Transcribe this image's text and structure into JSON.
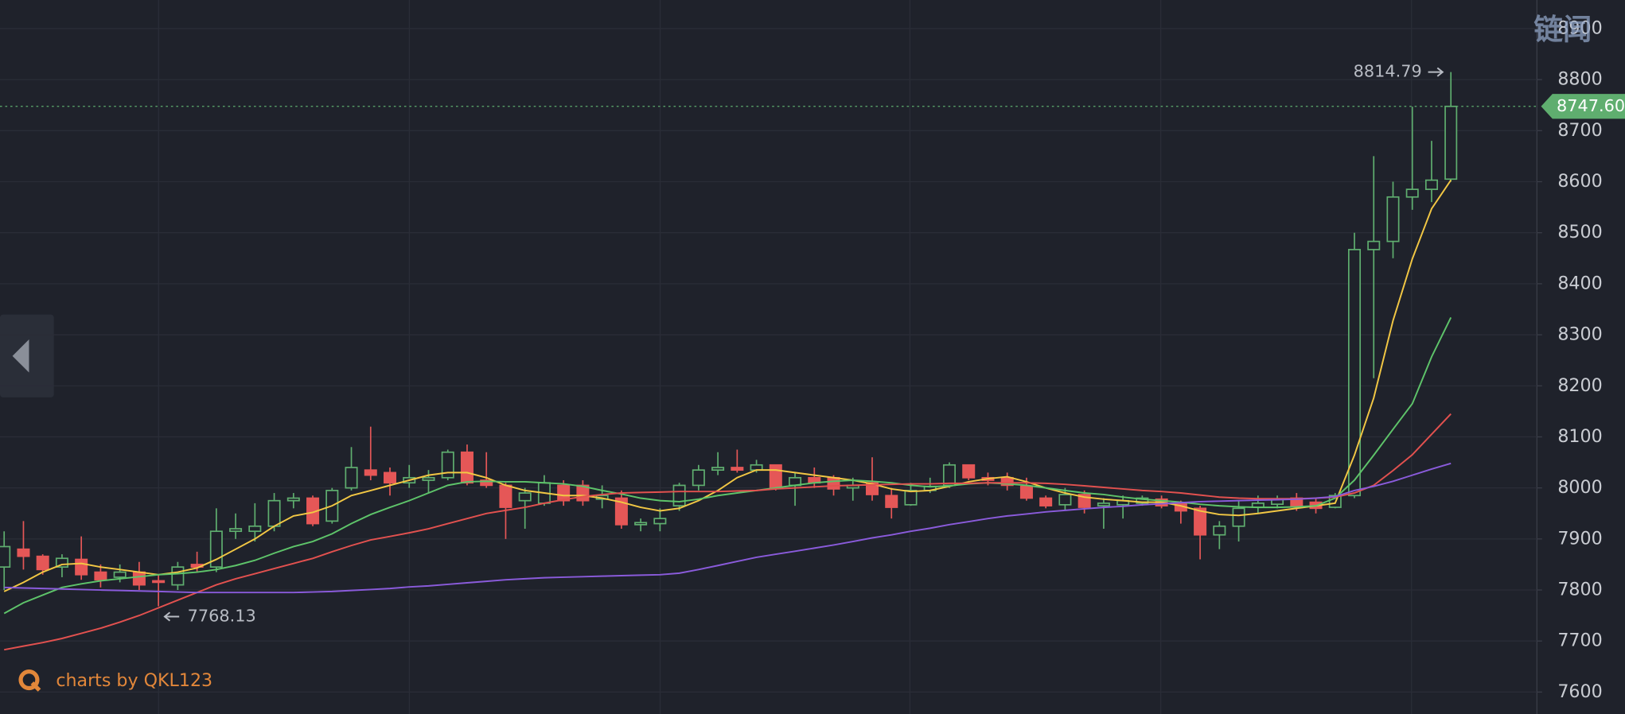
{
  "chart_data": {
    "type": "candlestick",
    "watermark": "链闻",
    "footer": "charts by QKL123",
    "ylim": [
      7557,
      8956
    ],
    "yticks": [
      7600,
      7700,
      7800,
      7900,
      8000,
      8100,
      8200,
      8300,
      8400,
      8500,
      8600,
      8700,
      8800,
      8900
    ],
    "grid": true,
    "up_color": "#5fae6f",
    "down_color": "#e55757",
    "last_price": {
      "value": 8747.6,
      "label": "8747.60"
    },
    "high_annotation": "8814.79",
    "low_annotation": "7768.13",
    "open": [
      7845,
      7880,
      7866,
      7845,
      7860,
      7835,
      7825,
      7835,
      7818,
      7810,
      7850,
      7845,
      7915,
      7915,
      7925,
      7975,
      7980,
      7935,
      8000,
      8035,
      8030,
      8010,
      8015,
      8020,
      8070,
      8015,
      8005,
      7975,
      7970,
      8005,
      8005,
      7978,
      7980,
      7928,
      7930,
      7965,
      8005,
      8035,
      8040,
      8035,
      8045,
      8005,
      8020,
      8020,
      8000,
      8010,
      7985,
      7967,
      7995,
      8005,
      8045,
      8020,
      8020,
      8003,
      7980,
      7967,
      7987,
      7965,
      7967,
      7970,
      7978,
      7970,
      7960,
      7908,
      7925,
      7962,
      7968,
      7980,
      7972,
      7962,
      7985,
      8467,
      8483,
      8570,
      8585,
      8605
    ],
    "high": [
      7915,
      7935,
      7870,
      7870,
      7905,
      7850,
      7850,
      7855,
      7830,
      7855,
      7875,
      7960,
      7950,
      7970,
      7990,
      7990,
      7985,
      8000,
      8080,
      8120,
      8040,
      8045,
      8035,
      8075,
      8085,
      8070,
      8010,
      8000,
      8025,
      8015,
      8015,
      8005,
      7995,
      7940,
      7960,
      8010,
      8045,
      8070,
      8075,
      8055,
      8045,
      8030,
      8040,
      8025,
      8020,
      8060,
      8000,
      8010,
      8020,
      8050,
      8045,
      8030,
      8030,
      8020,
      7985,
      8000,
      7995,
      7980,
      7985,
      7985,
      7985,
      7975,
      7965,
      7935,
      7975,
      7985,
      7985,
      7990,
      7980,
      7990,
      8500,
      8650,
      8600,
      8747,
      8680,
      8814.79
    ],
    "low": [
      7800,
      7840,
      7830,
      7825,
      7820,
      7805,
      7815,
      7800,
      7768.13,
      7800,
      7835,
      7835,
      7900,
      7895,
      7915,
      7960,
      7925,
      7930,
      7995,
      8015,
      7985,
      8000,
      7990,
      8015,
      8005,
      8000,
      7900,
      7920,
      7965,
      7965,
      7965,
      7960,
      7920,
      7915,
      7915,
      7955,
      7995,
      8025,
      8030,
      8030,
      7995,
      7965,
      8000,
      7985,
      7975,
      7975,
      7940,
      7965,
      7990,
      8000,
      8015,
      8005,
      7995,
      7975,
      7960,
      7955,
      7950,
      7920,
      7940,
      7965,
      7960,
      7930,
      7860,
      7880,
      7895,
      7950,
      7960,
      7955,
      7950,
      7960,
      7980,
      8215,
      8450,
      8545,
      8560,
      8600
    ],
    "close": [
      7885,
      7866,
      7840,
      7862,
      7830,
      7820,
      7835,
      7810,
      7815,
      7845,
      7845,
      7915,
      7920,
      7925,
      7975,
      7980,
      7930,
      7995,
      8040,
      8025,
      8010,
      8020,
      8020,
      8070,
      8010,
      8005,
      7962,
      7990,
      8010,
      7975,
      7975,
      7985,
      7928,
      7932,
      7940,
      8005,
      8035,
      8040,
      8035,
      8045,
      8000,
      8020,
      8010,
      7998,
      8005,
      7987,
      7962,
      7995,
      8003,
      8045,
      8020,
      8015,
      8005,
      7980,
      7965,
      7987,
      7962,
      7970,
      7975,
      7980,
      7965,
      7955,
      7908,
      7925,
      7960,
      7970,
      7978,
      7965,
      7960,
      7985,
      8467,
      8483,
      8570,
      8585,
      8603,
      8747.6
    ],
    "series": [
      {
        "color": "#f2c744",
        "values": [
          7797,
          7815,
          7835,
          7850,
          7852,
          7845,
          7840,
          7835,
          7830,
          7835,
          7843,
          7860,
          7880,
          7900,
          7925,
          7945,
          7952,
          7965,
          7985,
          7995,
          8005,
          8015,
          8025,
          8030,
          8030,
          8020,
          8005,
          7995,
          7990,
          7985,
          7985,
          7980,
          7972,
          7962,
          7955,
          7960,
          7975,
          7995,
          8020,
          8035,
          8035,
          8030,
          8025,
          8020,
          8015,
          8008,
          7998,
          7993,
          7995,
          8003,
          8012,
          8018,
          8022,
          8012,
          8000,
          7990,
          7982,
          7978,
          7975,
          7972,
          7972,
          7965,
          7955,
          7948,
          7946,
          7950,
          7955,
          7960,
          7965,
          7970,
          8064,
          8176,
          8328,
          8449,
          8547,
          8603
        ]
      },
      {
        "color": "#5ec46a",
        "values": [
          7754,
          7775,
          7790,
          7805,
          7812,
          7818,
          7822,
          7826,
          7830,
          7832,
          7835,
          7840,
          7848,
          7858,
          7872,
          7885,
          7895,
          7910,
          7930,
          7948,
          7962,
          7975,
          7990,
          8005,
          8012,
          8013,
          8012,
          8012,
          8010,
          8008,
          8003,
          7995,
          7988,
          7980,
          7975,
          7973,
          7978,
          7985,
          7990,
          7995,
          8000,
          8005,
          8010,
          8013,
          8015,
          8013,
          8010,
          8005,
          8002,
          8004,
          8008,
          8010,
          8008,
          8005,
          8000,
          7995,
          7990,
          7987,
          7982,
          7978,
          7975,
          7972,
          7968,
          7965,
          7963,
          7962,
          7962,
          7963,
          7965,
          7980,
          8015,
          8064,
          8115,
          8165,
          8257,
          8334
        ]
      },
      {
        "color": "#e2514f",
        "values": [
          7683,
          7690,
          7697,
          7705,
          7715,
          7725,
          7737,
          7750,
          7765,
          7780,
          7795,
          7810,
          7822,
          7832,
          7842,
          7852,
          7862,
          7875,
          7887,
          7898,
          7905,
          7912,
          7920,
          7930,
          7940,
          7950,
          7956,
          7962,
          7970,
          7977,
          7983,
          7987,
          7990,
          7991,
          7992,
          7993,
          7993,
          7993,
          7994,
          7995,
          7998,
          8000,
          8002,
          8004,
          8005,
          8006,
          8007,
          8008,
          8008,
          8009,
          8009,
          8010,
          8010,
          8010,
          8009,
          8007,
          8004,
          8001,
          7998,
          7995,
          7993,
          7990,
          7986,
          7982,
          7980,
          7979,
          7979,
          7979,
          7980,
          7982,
          7990,
          8005,
          8034,
          8065,
          8105,
          8145
        ]
      },
      {
        "color": "#8a5bdb",
        "values": [
          7805,
          7804,
          7803,
          7802,
          7801,
          7800,
          7799,
          7798,
          7797,
          7796,
          7795,
          7795,
          7795,
          7795,
          7795,
          7795,
          7796,
          7797,
          7799,
          7801,
          7803,
          7806,
          7808,
          7811,
          7814,
          7817,
          7820,
          7822,
          7824,
          7825,
          7826,
          7827,
          7828,
          7829,
          7830,
          7833,
          7840,
          7848,
          7856,
          7864,
          7870,
          7876,
          7882,
          7888,
          7895,
          7902,
          7908,
          7915,
          7921,
          7928,
          7934,
          7940,
          7945,
          7949,
          7953,
          7956,
          7959,
          7962,
          7964,
          7967,
          7969,
          7971,
          7973,
          7974,
          7975,
          7976,
          7977,
          7978,
          7980,
          7983,
          7995,
          8003,
          8013,
          8025,
          8037,
          8048
        ]
      }
    ]
  }
}
